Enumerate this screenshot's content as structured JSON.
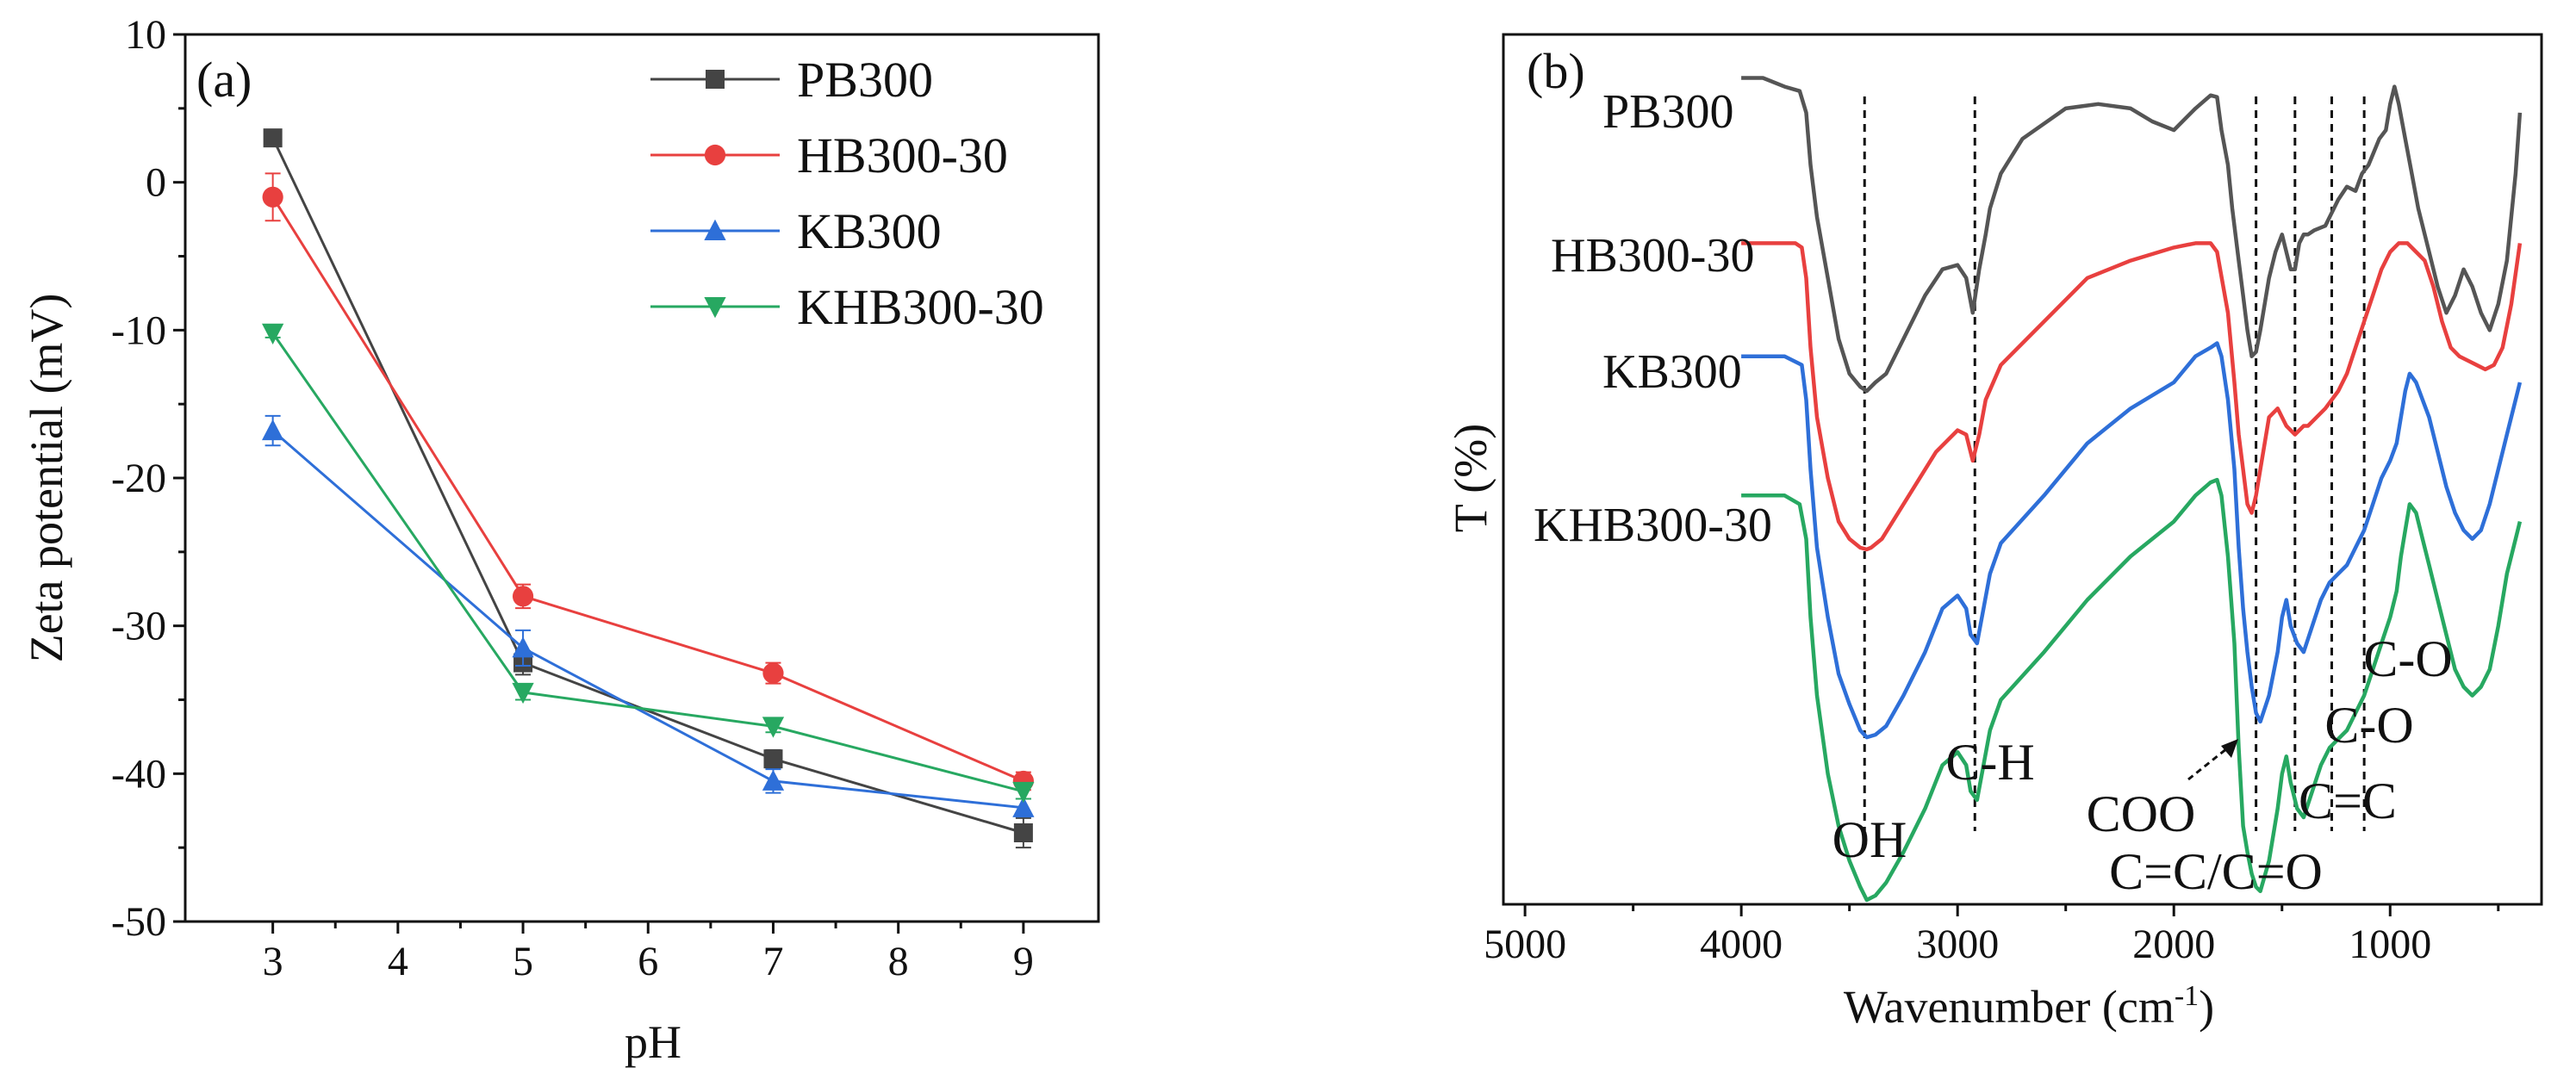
{
  "chart_data": [
    {
      "type": "line",
      "panel_label": "(a)",
      "xlabel": "pH",
      "ylabel": "Zeta potential (mV)",
      "x": [
        3,
        5,
        7,
        9
      ],
      "xlim": [
        2.3,
        9.6
      ],
      "ylim": [
        -50,
        10
      ],
      "xticks": [
        "3",
        "4",
        "5",
        "6",
        "7",
        "8",
        "9"
      ],
      "yticks": [
        "10",
        "0",
        "-10",
        "-20",
        "-30",
        "-40",
        "-50"
      ],
      "legend_position": "top-right",
      "series": [
        {
          "name": "PB300",
          "color": "#444444",
          "marker": "square",
          "values": [
            3.0,
            -32.5,
            -39.0,
            -44.0
          ],
          "errors": [
            0.4,
            0.8,
            0.6,
            1.0
          ]
        },
        {
          "name": "HB300-30",
          "color": "#e8403f",
          "marker": "circle",
          "values": [
            -1.0,
            -28.0,
            -33.2,
            -40.5
          ],
          "errors": [
            1.6,
            0.8,
            0.7,
            0.6
          ]
        },
        {
          "name": "KB300",
          "color": "#2e6fd8",
          "marker": "triangle-up",
          "values": [
            -16.8,
            -31.5,
            -40.5,
            -42.3
          ],
          "errors": [
            1.0,
            1.2,
            0.8,
            0.6
          ]
        },
        {
          "name": "KHB300-30",
          "color": "#27a861",
          "marker": "triangle-down",
          "values": [
            -10.2,
            -34.5,
            -36.8,
            -41.2
          ],
          "errors": [
            0.3,
            0.5,
            0.4,
            0.5
          ]
        }
      ]
    },
    {
      "type": "line",
      "panel_label": "(b)",
      "xlabel": "Wavenumber (cm",
      "xlabel_sup": "-1",
      "xlabel_end": ")",
      "ylabel": "T (%)",
      "xlim": [
        5100,
        300
      ],
      "ylim": [
        0,
        100
      ],
      "xticks": [
        "5000",
        "4000",
        "3000",
        "2000",
        "1000"
      ],
      "xtick_values": [
        5000,
        4000,
        3000,
        2000,
        1000
      ],
      "series": [
        {
          "name": "PB300",
          "color": "#555555",
          "offset": 0,
          "x": [
            4000,
            3900,
            3800,
            3730,
            3700,
            3680,
            3650,
            3600,
            3550,
            3500,
            3450,
            3420,
            3380,
            3330,
            3250,
            3150,
            3070,
            3000,
            2960,
            2930,
            2900,
            2870,
            2850,
            2800,
            2700,
            2500,
            2350,
            2200,
            2100,
            2000,
            1900,
            1830,
            1800,
            1780,
            1750,
            1730,
            1700,
            1680,
            1660,
            1640,
            1620,
            1600,
            1560,
            1530,
            1500,
            1480,
            1460,
            1440,
            1420,
            1400,
            1380,
            1350,
            1300,
            1260,
            1240,
            1200,
            1160,
            1130,
            1100,
            1050,
            1020,
            1000,
            980,
            960,
            930,
            900,
            870,
            820,
            780,
            740,
            700,
            660,
            620,
            580,
            540,
            500,
            460,
            420,
            400
          ],
          "y": [
            95,
            95,
            94,
            93.5,
            91,
            85,
            79,
            72,
            65,
            61,
            59.5,
            59,
            60,
            61,
            65,
            70,
            73,
            73.5,
            72,
            68,
            73,
            77,
            80,
            84,
            88,
            91.5,
            92,
            91.5,
            90,
            89,
            91.5,
            93,
            92.8,
            89,
            85,
            80,
            74,
            70,
            66,
            63,
            63.5,
            66,
            72,
            75,
            77,
            75,
            73,
            73,
            76,
            77,
            77,
            77.5,
            78,
            80,
            81,
            82.5,
            82,
            84,
            85,
            88,
            89,
            92,
            94,
            92,
            88,
            84,
            80,
            75,
            71,
            68,
            70,
            73,
            71,
            68,
            66,
            69,
            74,
            84,
            91
          ]
        },
        {
          "name": "HB300-30",
          "color": "#e8403f",
          "offset": -16,
          "x": [
            4000,
            3800,
            3750,
            3720,
            3700,
            3680,
            3650,
            3600,
            3550,
            3500,
            3450,
            3420,
            3400,
            3350,
            3300,
            3200,
            3100,
            3000,
            2960,
            2930,
            2900,
            2870,
            2800,
            2600,
            2400,
            2200,
            2000,
            1900,
            1830,
            1800,
            1750,
            1720,
            1700,
            1680,
            1660,
            1640,
            1620,
            1600,
            1560,
            1520,
            1480,
            1440,
            1400,
            1380,
            1340,
            1300,
            1240,
            1200,
            1160,
            1120,
            1080,
            1040,
            1000,
            960,
            920,
            880,
            840,
            800,
            760,
            720,
            680,
            640,
            600,
            560,
            520,
            480,
            440,
            400
          ],
          "y": [
            92,
            92,
            92,
            91.5,
            88,
            80,
            72,
            65,
            60,
            58,
            57,
            56.8,
            57,
            58,
            60,
            64,
            68,
            70.5,
            70,
            67,
            70,
            74,
            78,
            83,
            88,
            90,
            91.5,
            92,
            92,
            91,
            84,
            76,
            70,
            66,
            62,
            61,
            63,
            66,
            72,
            73,
            71,
            70,
            71,
            71,
            72,
            73,
            75,
            77,
            80,
            83,
            86,
            89,
            91,
            92,
            92,
            91,
            90,
            87,
            83,
            80,
            79,
            78.5,
            78,
            77.5,
            78,
            80,
            85,
            92
          ]
        },
        {
          "name": "KB300",
          "color": "#2e6fd8",
          "offset": -32,
          "x": [
            4000,
            3800,
            3720,
            3700,
            3680,
            3650,
            3600,
            3550,
            3500,
            3450,
            3420,
            3380,
            3330,
            3250,
            3150,
            3070,
            3000,
            2960,
            2940,
            2910,
            2880,
            2850,
            2800,
            2600,
            2400,
            2200,
            2000,
            1900,
            1830,
            1800,
            1780,
            1750,
            1720,
            1700,
            1680,
            1660,
            1640,
            1620,
            1600,
            1560,
            1520,
            1500,
            1480,
            1460,
            1430,
            1400,
            1360,
            1320,
            1280,
            1240,
            1200,
            1160,
            1120,
            1080,
            1040,
            1000,
            970,
            950,
            930,
            910,
            880,
            850,
            820,
            780,
            740,
            700,
            660,
            620,
            580,
            540,
            500,
            460,
            420,
            400
          ],
          "y": [
            95,
            95,
            94,
            90,
            82,
            73,
            65,
            58.5,
            55,
            52,
            51.2,
            51.5,
            52.5,
            56,
            61,
            66,
            67.5,
            66,
            63,
            62,
            66,
            70,
            73.5,
            79,
            85,
            89,
            92,
            95,
            96,
            96.5,
            95,
            90,
            82,
            73,
            66,
            61,
            57,
            54,
            53,
            56,
            61,
            65,
            67,
            64,
            62,
            61,
            64,
            67,
            69,
            70,
            71,
            73,
            75,
            78,
            81,
            83,
            85,
            88,
            91,
            93,
            92,
            90,
            88,
            84,
            80,
            77,
            75,
            74,
            75,
            78,
            82,
            86,
            90,
            92
          ]
        },
        {
          "name": "KHB300-30",
          "color": "#27a861",
          "offset": -48,
          "x": [
            4000,
            3800,
            3730,
            3700,
            3680,
            3650,
            3600,
            3550,
            3500,
            3450,
            3420,
            3380,
            3330,
            3250,
            3150,
            3070,
            3000,
            2960,
            2940,
            2910,
            2880,
            2850,
            2800,
            2600,
            2400,
            2200,
            2000,
            1900,
            1830,
            1800,
            1780,
            1750,
            1720,
            1700,
            1680,
            1660,
            1640,
            1620,
            1600,
            1560,
            1520,
            1500,
            1480,
            1460,
            1430,
            1400,
            1360,
            1320,
            1280,
            1240,
            1200,
            1160,
            1120,
            1080,
            1040,
            1000,
            970,
            950,
            930,
            910,
            880,
            850,
            820,
            780,
            740,
            700,
            660,
            620,
            580,
            540,
            500,
            460,
            420,
            400
          ],
          "y": [
            95,
            95,
            94,
            90,
            81,
            72,
            63,
            57,
            53,
            50,
            48.5,
            49,
            50.5,
            54,
            59,
            64,
            65.5,
            64,
            61,
            60,
            64,
            68,
            71.5,
            77,
            83,
            88,
            92,
            95,
            96.5,
            96.8,
            95,
            88,
            78,
            66,
            57,
            54,
            51.5,
            50,
            49.5,
            53,
            59,
            63,
            65,
            62,
            59,
            58,
            61,
            64,
            66,
            67,
            68,
            70,
            72,
            75,
            78,
            81,
            84,
            88,
            91,
            94,
            93,
            90,
            87,
            83,
            79,
            75,
            73,
            72,
            73,
            75,
            80,
            86,
            90,
            92
          ]
        }
      ],
      "series_labels": [
        {
          "name": "PB300",
          "offset": 0
        },
        {
          "name": "HB300-30",
          "offset": -16
        },
        {
          "name": "KB300",
          "offset": -32
        },
        {
          "name": "KHB300-30",
          "offset": -48
        }
      ],
      "reference_lines": [
        3430,
        2920,
        1620,
        1440,
        1270,
        1120
      ],
      "annotations": [
        {
          "text": "OH",
          "x": 3430
        },
        {
          "text": "C-H",
          "x": 2920
        },
        {
          "text": "COO",
          "x": 1860
        },
        {
          "text": "C=C/C=O",
          "x": 1625
        },
        {
          "text": "C=C",
          "x": 1410
        },
        {
          "text": "C-O",
          "x": 1280
        },
        {
          "text": "C-O",
          "x": 1070
        }
      ]
    }
  ]
}
